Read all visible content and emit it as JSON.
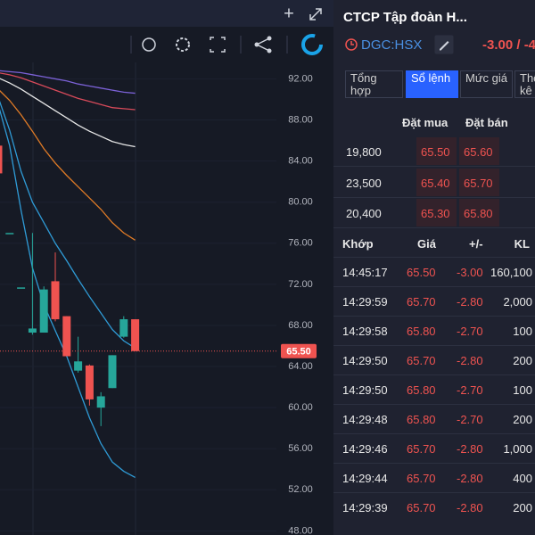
{
  "header": {
    "title": "CTCP Tập đoàn H...",
    "symbol": "DGC:HSX",
    "change": "-3.00 / -4"
  },
  "tabs": [
    "Tổng hợp",
    "Sổ lệnh",
    "Mức giá",
    "Thống kê"
  ],
  "active_tab": 1,
  "chart_data": {
    "type": "candlestick",
    "ylim": [
      47.6,
      93.6
    ],
    "yticks": [
      {
        "value": 92,
        "label": "92.00"
      },
      {
        "value": 88,
        "label": "88.00"
      },
      {
        "value": 84,
        "label": "84.00"
      },
      {
        "value": 80,
        "label": "80.00"
      },
      {
        "value": 76,
        "label": "76.00"
      },
      {
        "value": 72,
        "label": "72.00"
      },
      {
        "value": 68,
        "label": "68.00"
      },
      {
        "value": 64,
        "label": "64.00"
      },
      {
        "value": 60,
        "label": "60.00"
      },
      {
        "value": 56,
        "label": "56.00"
      },
      {
        "value": 52,
        "label": "52.00"
      },
      {
        "value": 48,
        "label": "48.00"
      }
    ],
    "last_price": {
      "value": 65.5,
      "label": "65.50"
    },
    "up_color": "#26a69a",
    "down_color": "#ef5350",
    "open": [
      85.5,
      77.0,
      71.7,
      67.3,
      67.3,
      72.3,
      68.9,
      63.6,
      64.1,
      60.0,
      61.9,
      66.9,
      68.6
    ],
    "high": [
      85.5,
      77.0,
      71.7,
      77.0,
      71.8,
      75.1,
      68.9,
      66.9,
      64.2,
      61.5,
      65.1,
      68.9,
      68.6
    ],
    "low": [
      82.8,
      77.0,
      71.7,
      67.1,
      67.3,
      68.4,
      65.0,
      63.4,
      60.2,
      58.2,
      61.9,
      66.8,
      65.5
    ],
    "close": [
      82.8,
      77.0,
      71.7,
      67.7,
      71.5,
      68.6,
      65.0,
      64.5,
      60.8,
      61.1,
      65.1,
      68.6,
      65.5
    ],
    "series": [
      {
        "color": "#7b61d6",
        "values": [
          92.8,
          92.7,
          92.6,
          92.4,
          92.2,
          92.0,
          91.8,
          91.5,
          91.3,
          91.1,
          90.9,
          90.7,
          90.6
        ]
      },
      {
        "color": "#d84a5a",
        "values": [
          92.6,
          92.4,
          92.1,
          91.7,
          91.3,
          90.9,
          90.5,
          90.1,
          89.8,
          89.5,
          89.2,
          89.1,
          89.0
        ]
      },
      {
        "color": "#e8e8e8",
        "values": [
          92.1,
          91.6,
          91.0,
          90.3,
          89.6,
          88.9,
          88.2,
          87.5,
          86.9,
          86.4,
          85.9,
          85.6,
          85.4
        ]
      },
      {
        "color": "#e07b26",
        "values": [
          91.0,
          89.9,
          88.5,
          86.9,
          85.2,
          83.8,
          82.6,
          81.5,
          80.4,
          79.3,
          78.0,
          77.0,
          76.3
        ]
      },
      {
        "color": "#2f9bd6",
        "values": [
          90.2,
          87.0,
          83.0,
          80.0,
          78.0,
          76.0,
          74.3,
          72.5,
          70.8,
          69.2,
          67.6,
          66.5,
          65.8
        ]
      },
      {
        "color": "#2f9bd6",
        "values": [
          89.5,
          85.5,
          79.2,
          73.6,
          70.0,
          67.5,
          65.0,
          62.0,
          59.0,
          56.5,
          54.7,
          53.8,
          53.2
        ]
      }
    ]
  },
  "order_book": {
    "columns": [
      "Đặt mua",
      "Đặt bán"
    ],
    "rows": [
      [
        "19,800",
        "65.50",
        "65.60"
      ],
      [
        "23,500",
        "65.40",
        "65.70"
      ],
      [
        "20,400",
        "65.30",
        "65.80"
      ]
    ]
  },
  "trades": {
    "columns": [
      "Khớp",
      "Giá",
      "+/-",
      "KL"
    ],
    "rows": [
      [
        "14:45:17",
        "65.50",
        "-3.00",
        "160,100"
      ],
      [
        "14:29:59",
        "65.70",
        "-2.80",
        "2,000"
      ],
      [
        "14:29:58",
        "65.80",
        "-2.70",
        "100"
      ],
      [
        "14:29:50",
        "65.70",
        "-2.80",
        "200"
      ],
      [
        "14:29:50",
        "65.80",
        "-2.70",
        "100"
      ],
      [
        "14:29:48",
        "65.80",
        "-2.70",
        "200"
      ],
      [
        "14:29:46",
        "65.70",
        "-2.80",
        "1,000"
      ],
      [
        "14:29:44",
        "65.70",
        "-2.80",
        "400"
      ],
      [
        "14:29:39",
        "65.70",
        "-2.80",
        "200"
      ]
    ]
  }
}
